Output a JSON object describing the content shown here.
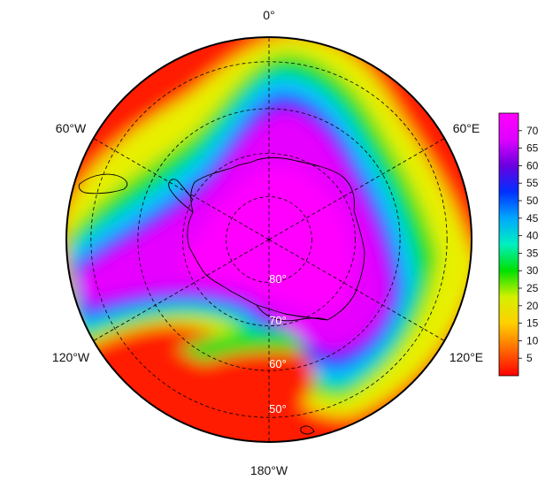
{
  "map": {
    "projection": "south-polar-stereographic",
    "lon_labels": {
      "top": "0°",
      "left_upper": "60°W",
      "right_upper": "60°E",
      "left_lower": "120°W",
      "right_lower": "120°E",
      "bottom": "180°W"
    },
    "lat_labels": [
      "80°",
      "70°",
      "60°",
      "50°"
    ],
    "lat_circles_deg": [
      80,
      70,
      60,
      50
    ],
    "meridians_deg": [
      0,
      60,
      120,
      180,
      240,
      300
    ]
  },
  "colorbar": {
    "min": 0,
    "max": 75,
    "ticks": [
      "5",
      "10",
      "15",
      "20",
      "25",
      "30",
      "35",
      "40",
      "45",
      "50",
      "55",
      "60",
      "65",
      "70"
    ],
    "colors": [
      "#ff0000",
      "#ff6a00",
      "#ffd000",
      "#d4f000",
      "#00e000",
      "#00f0c0",
      "#00a8ff",
      "#0030ff",
      "#6a00e0",
      "#e000ff",
      "#ff00ff"
    ]
  }
}
